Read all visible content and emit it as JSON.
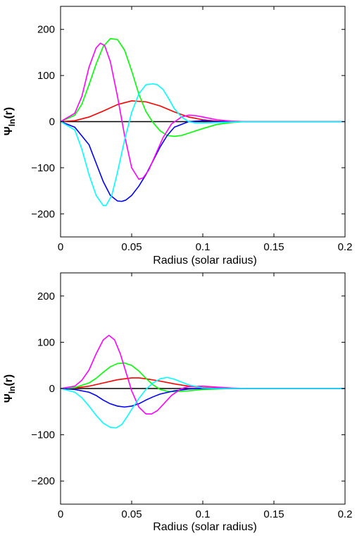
{
  "chart_data": [
    {
      "type": "line",
      "title": "",
      "xlabel": "Radius (solar radius)",
      "ylabel": "Ψ",
      "ylabel_sub": "ln",
      "ylabel_tail": "(r)",
      "xlim": [
        0,
        0.2
      ],
      "ylim": [
        -250,
        250
      ],
      "xticks": [
        0,
        0.05,
        0.1,
        0.15,
        0.2
      ],
      "xtick_labels": [
        "0",
        "0.05",
        "0.1",
        "0.15",
        "0.2"
      ],
      "yticks": [
        -200,
        -100,
        0,
        100,
        200
      ],
      "ytick_labels": [
        "−200",
        "−100",
        "0",
        "100",
        "200"
      ],
      "grid": false,
      "series": [
        {
          "color": "#000000",
          "x": [
            0,
            0.2
          ],
          "y": [
            0,
            0
          ]
        },
        {
          "color": "#ff0000",
          "x": [
            0,
            0.01,
            0.02,
            0.03,
            0.04,
            0.05,
            0.06,
            0.07,
            0.08,
            0.09,
            0.1,
            0.11,
            0.12,
            0.14,
            0.2
          ],
          "y": [
            0,
            2,
            10,
            23,
            37,
            45,
            43,
            34,
            21,
            10,
            4,
            1,
            0,
            0,
            0
          ]
        },
        {
          "color": "#00ff00",
          "x": [
            0,
            0.01,
            0.015,
            0.02,
            0.025,
            0.03,
            0.035,
            0.04,
            0.045,
            0.05,
            0.055,
            0.06,
            0.065,
            0.07,
            0.075,
            0.08,
            0.085,
            0.09,
            0.1,
            0.11,
            0.12,
            0.13,
            0.14,
            0.2
          ],
          "y": [
            0,
            14,
            38,
            80,
            125,
            163,
            180,
            178,
            155,
            110,
            60,
            22,
            -2,
            -20,
            -30,
            -32,
            -30,
            -25,
            -15,
            -6,
            -2,
            0,
            0,
            0
          ]
        },
        {
          "color": "#0000ff",
          "x": [
            0,
            0.01,
            0.02,
            0.025,
            0.03,
            0.035,
            0.04,
            0.043,
            0.046,
            0.05,
            0.055,
            0.06,
            0.065,
            0.07,
            0.075,
            0.08,
            0.09,
            0.1,
            0.11,
            0.2
          ],
          "y": [
            0,
            -12,
            -50,
            -90,
            -130,
            -160,
            -172,
            -173,
            -170,
            -160,
            -140,
            -115,
            -85,
            -55,
            -30,
            -12,
            0,
            2,
            0,
            0
          ]
        },
        {
          "color": "#ff00ff",
          "x": [
            0,
            0.01,
            0.015,
            0.02,
            0.025,
            0.028,
            0.031,
            0.035,
            0.04,
            0.045,
            0.05,
            0.055,
            0.058,
            0.062,
            0.067,
            0.072,
            0.078,
            0.085,
            0.09,
            0.095,
            0.1,
            0.11,
            0.12,
            0.13,
            0.2
          ],
          "y": [
            0,
            18,
            55,
            118,
            160,
            170,
            165,
            130,
            55,
            -30,
            -100,
            -125,
            -122,
            -105,
            -70,
            -35,
            -5,
            10,
            14,
            13,
            10,
            4,
            1,
            0,
            0
          ]
        },
        {
          "color": "#00ffff",
          "x": [
            0,
            0.01,
            0.015,
            0.02,
            0.025,
            0.03,
            0.032,
            0.036,
            0.04,
            0.045,
            0.05,
            0.055,
            0.06,
            0.065,
            0.068,
            0.072,
            0.076,
            0.08,
            0.085,
            0.09,
            0.095,
            0.1,
            0.11,
            0.12,
            0.13,
            0.2
          ],
          "y": [
            0,
            -18,
            -60,
            -115,
            -160,
            -182,
            -182,
            -160,
            -110,
            -40,
            20,
            60,
            80,
            82,
            80,
            70,
            50,
            28,
            10,
            0,
            -3,
            -3,
            -2,
            -1,
            0,
            0
          ]
        }
      ]
    },
    {
      "type": "line",
      "title": "",
      "xlabel": "Radius (solar radius)",
      "ylabel": "Ψ",
      "ylabel_sub": "ln",
      "ylabel_tail": "(r)",
      "xlim": [
        0,
        0.2
      ],
      "ylim": [
        -250,
        250
      ],
      "xticks": [
        0,
        0.05,
        0.1,
        0.15,
        0.2
      ],
      "xtick_labels": [
        "0",
        "0.05",
        "0.1",
        "0.15",
        "0.2"
      ],
      "yticks": [
        -200,
        -100,
        0,
        100,
        200
      ],
      "ytick_labels": [
        "−200",
        "−100",
        "0",
        "100",
        "200"
      ],
      "grid": false,
      "series": [
        {
          "color": "#000000",
          "x": [
            0,
            0.2
          ],
          "y": [
            0,
            0
          ]
        },
        {
          "color": "#ff0000",
          "x": [
            0,
            0.01,
            0.02,
            0.03,
            0.04,
            0.05,
            0.055,
            0.06,
            0.07,
            0.08,
            0.09,
            0.1,
            0.11,
            0.12,
            0.2
          ],
          "y": [
            0,
            1,
            5,
            12,
            19,
            23,
            23,
            21,
            16,
            10,
            5,
            2,
            1,
            0,
            0
          ]
        },
        {
          "color": "#00ff00",
          "x": [
            0,
            0.01,
            0.02,
            0.025,
            0.03,
            0.035,
            0.04,
            0.045,
            0.05,
            0.055,
            0.06,
            0.065,
            0.07,
            0.075,
            0.08,
            0.09,
            0.1,
            0.11,
            0.12,
            0.2
          ],
          "y": [
            0,
            2,
            12,
            22,
            35,
            47,
            54,
            55,
            50,
            38,
            22,
            8,
            -2,
            -6,
            -7,
            -5,
            -2,
            -1,
            0,
            0
          ]
        },
        {
          "color": "#0000ff",
          "x": [
            0,
            0.01,
            0.02,
            0.025,
            0.03,
            0.035,
            0.04,
            0.045,
            0.05,
            0.055,
            0.06,
            0.065,
            0.07,
            0.08,
            0.09,
            0.1,
            0.11,
            0.2
          ],
          "y": [
            0,
            -2,
            -8,
            -15,
            -25,
            -33,
            -38,
            -40,
            -38,
            -33,
            -25,
            -18,
            -12,
            -5,
            -1,
            0,
            0,
            0
          ]
        },
        {
          "color": "#ff00ff",
          "x": [
            0,
            0.01,
            0.015,
            0.02,
            0.025,
            0.03,
            0.034,
            0.038,
            0.042,
            0.046,
            0.05,
            0.055,
            0.06,
            0.064,
            0.068,
            0.072,
            0.078,
            0.085,
            0.09,
            0.1,
            0.11,
            0.12,
            0.13,
            0.2
          ],
          "y": [
            0,
            5,
            18,
            40,
            75,
            105,
            115,
            105,
            75,
            35,
            -5,
            -40,
            -55,
            -55,
            -48,
            -35,
            -15,
            0,
            4,
            5,
            3,
            1,
            0,
            0
          ]
        },
        {
          "color": "#00ffff",
          "x": [
            0,
            0.01,
            0.015,
            0.02,
            0.025,
            0.03,
            0.035,
            0.039,
            0.043,
            0.047,
            0.05,
            0.055,
            0.06,
            0.065,
            0.07,
            0.075,
            0.08,
            0.085,
            0.09,
            0.1,
            0.11,
            0.12,
            0.2
          ],
          "y": [
            0,
            -8,
            -20,
            -38,
            -58,
            -75,
            -84,
            -85,
            -78,
            -60,
            -45,
            -22,
            -2,
            12,
            21,
            24,
            20,
            14,
            8,
            1,
            0,
            0,
            0
          ]
        }
      ]
    }
  ]
}
